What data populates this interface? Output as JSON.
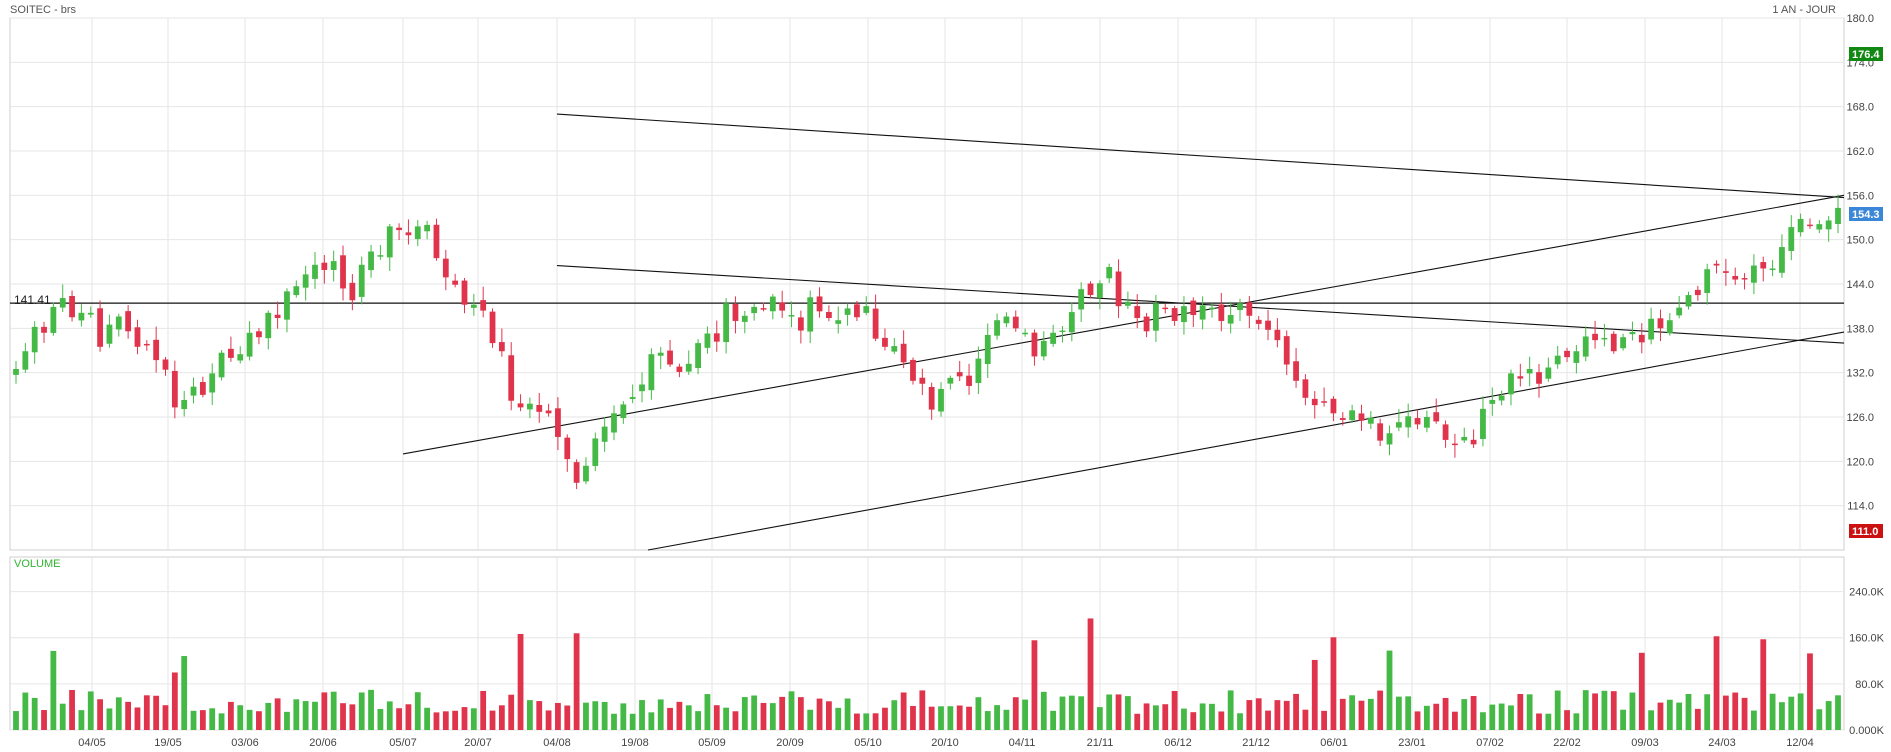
{
  "header": {
    "title": "SOITEC - brs",
    "period": "1 AN - JOUR"
  },
  "colors": {
    "up": "#45b946",
    "down": "#e0344c",
    "grid": "#e6e6e6",
    "frame": "#cfcfcf",
    "badge_high": "#118811",
    "badge_last": "#3a86d8",
    "badge_low": "#cc1111"
  },
  "chart_data": {
    "type": "candlestick",
    "price_axis": {
      "min": 108,
      "max": 180,
      "ticks": [
        "180.0",
        "174.0",
        "168.0",
        "162.0",
        "156.0",
        "150.0",
        "144.0",
        "138.0",
        "132.0",
        "126.0",
        "120.0",
        "114.0"
      ]
    },
    "x_labels": [
      "04/05",
      "19/05",
      "03/06",
      "20/06",
      "05/07",
      "20/07",
      "04/08",
      "19/08",
      "05/09",
      "20/09",
      "05/10",
      "20/10",
      "04/11",
      "21/11",
      "06/12",
      "21/12",
      "06/01",
      "23/01",
      "07/02",
      "22/02",
      "09/03",
      "24/03",
      "12/04"
    ],
    "reference_line": {
      "value": 141.41,
      "label": "141.41"
    },
    "badges": {
      "high": "176.4",
      "last": "154.3",
      "low": "111.0"
    },
    "trendlines": [
      {
        "from": [
          "04/08",
          167.0
        ],
        "to": [
          "end",
          155.7
        ]
      },
      {
        "from": [
          "04/08",
          146.5
        ],
        "to": [
          "end",
          136.0
        ]
      },
      {
        "from": [
          "05/07",
          121.0
        ],
        "to": [
          "end",
          156.0
        ]
      },
      {
        "from": [
          "13/09",
          108.0
        ],
        "to": [
          "end",
          137.5
        ]
      }
    ],
    "closes": [
      132.5,
      134.9,
      138.2,
      137.4,
      140.9,
      142.1,
      139.5,
      140.1,
      140.1,
      135.5,
      138.5,
      139.6,
      137.6,
      135.5,
      135.7,
      133.7,
      132.4,
      127.3,
      128.3,
      130.1,
      129.0,
      131.9,
      134.7,
      134.0,
      134.5,
      137.4,
      136.8,
      140.1,
      139.4,
      143.0,
      143.7,
      145.3,
      146.6,
      145.9,
      147.1,
      143.4,
      141.8,
      146.6,
      148.4,
      147.9,
      151.8,
      151.3,
      150.6,
      151.8,
      152.0,
      147.5,
      144.9,
      143.9,
      141.2,
      141.2,
      140.4,
      136.0,
      134.9,
      128.2,
      127.3,
      127.8,
      126.7,
      126.5,
      123.3,
      120.3,
      117.1,
      119.4,
      123.1,
      124.7,
      126.5,
      127.7,
      128.7,
      130.4,
      134.5,
      134.7,
      133.1,
      132.1,
      133.2,
      136.0,
      137.3,
      136.2,
      141.4,
      139.0,
      139.7,
      140.9,
      140.6,
      142.3,
      140.4,
      139.8,
      137.7,
      142.2,
      140.3,
      139.4,
      139.1,
      140.7,
      139.5,
      141.0,
      136.6,
      135.5,
      135.6,
      133.4,
      130.9,
      130.5,
      127.0,
      129.8,
      131.3,
      131.5,
      130.2,
      133.9,
      137.1,
      139.1,
      139.6,
      138.0,
      137.4,
      134.2,
      136.3,
      137.4,
      137.7,
      140.2,
      143.3,
      142.5,
      144.1,
      146.3,
      141.0,
      141.6,
      139.4,
      137.6,
      141.4,
      140.6,
      139.0,
      141.0,
      139.8,
      141.1,
      140.8,
      139.0,
      139.8,
      141.4,
      139.7,
      138.6,
      137.8,
      136.4,
      133.1,
      130.9,
      128.6,
      127.6,
      128.0,
      126.5,
      125.6,
      126.9,
      125.5,
      125.9,
      122.8,
      123.8,
      125.3,
      126.1,
      125.0,
      126.0,
      125.4,
      122.9,
      122.3,
      123.3,
      122.3,
      127.1,
      128.3,
      128.9,
      131.9,
      131.2,
      132.5,
      130.5,
      132.7,
      134.3,
      134.1,
      134.9,
      136.9,
      136.4,
      136.7,
      134.9,
      136.8,
      137.5,
      136.1,
      139.3,
      138.0,
      139.1,
      140.8,
      142.5,
      142.5,
      146.0,
      146.5,
      145.5,
      144.6,
      144.8,
      146.5,
      146.1,
      146.1,
      149.0,
      151.7,
      152.8,
      152.0,
      152.1,
      152.6,
      154.3
    ]
  },
  "volume": {
    "title": "VOLUME",
    "axis_max": 300000,
    "ticks": [
      "240.0K",
      "160.0K",
      "80.0K",
      "0.000K"
    ]
  }
}
